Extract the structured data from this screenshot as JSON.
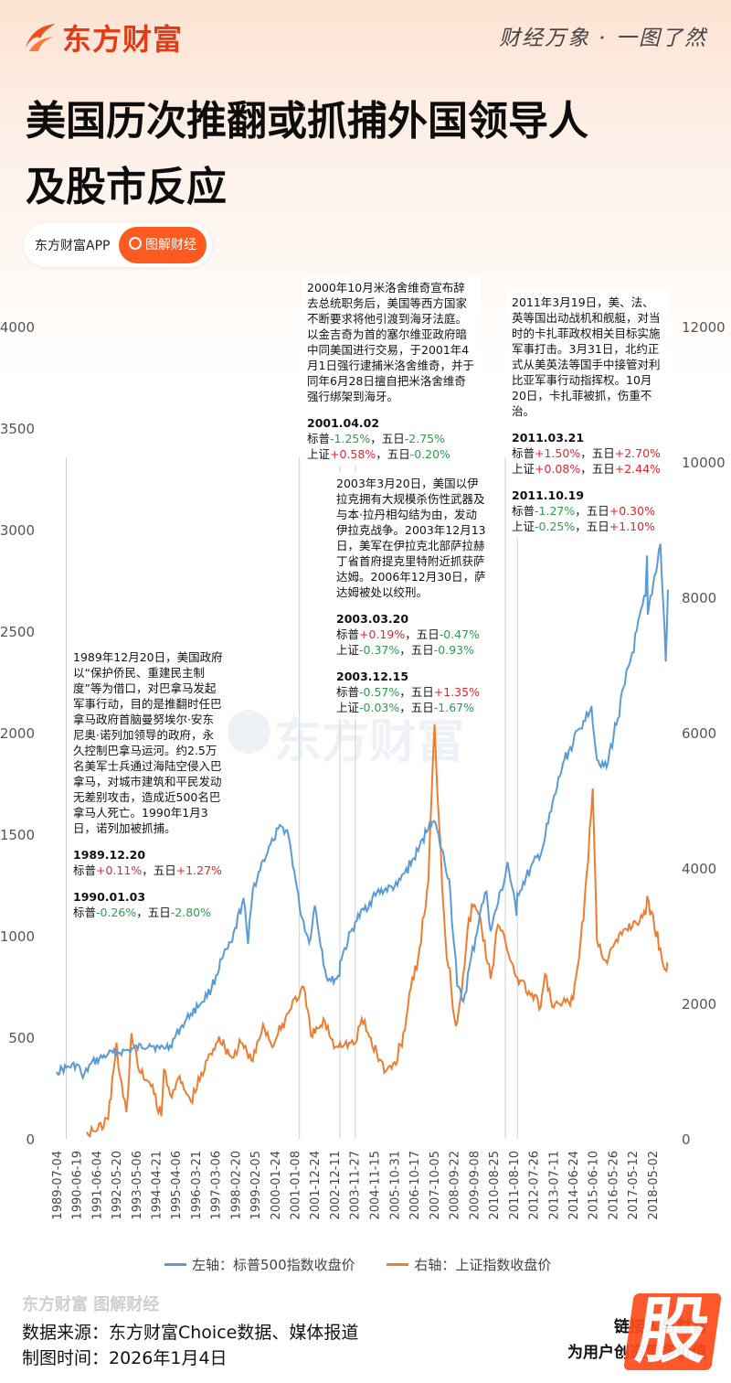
{
  "header": {
    "brand": "东方财富",
    "tagline": "财经万象 · 一图了然",
    "title_line1": "美国历次推翻或抓捕外国领导人",
    "title_line2": "及股市反应",
    "app_label": "东方财富APP",
    "search_button": "图解财经"
  },
  "colors": {
    "sp500": "#5b9bd5",
    "shanghai": "#ed7d31",
    "accent": "#ff5a1f",
    "up": "#e8232b",
    "down": "#25a148"
  },
  "annotations": {
    "panama": {
      "text": "1989年12月20日，美国政府以“保护侨民、重建民主制度”等为借口，对巴拿马发起军事行动，目的是推翻时任巴拿马政府首脑曼努埃尔·安东尼奥·诺列加领导的政府，永久控制巴拿马运河。约2.5万名美军士兵通过海陆空侵入巴拿马，对城市建筑和平民发动无差别攻击，造成近500名巴拿马人死亡。1990年1月3日，诺列加被抓捕。",
      "ev1_date": "1989.12.20",
      "ev1_l1_a": "标普",
      "ev1_l1_b": "+0.11%",
      "ev1_l1_c": "，五日",
      "ev1_l1_d": "+1.27%",
      "ev2_date": "1990.01.03",
      "ev2_l1_a": "标普",
      "ev2_l1_b": "-0.26%",
      "ev2_l1_c": "，五日",
      "ev2_l1_d": "-2.80%"
    },
    "milosevic": {
      "text": "2000年10月米洛舍维奇宣布辞去总统职务后，美国等西方国家不断要求将他引渡到海牙法庭。以金吉奇为首的塞尔维亚政府暗中同美国进行交易，于2001年4月1日强行逮捕米洛舍维奇，并于同年6月28日擅自把米洛舍维奇强行绑架到海牙。",
      "ev1_date": "2001.04.02",
      "ev1_l1_a": "标普",
      "ev1_l1_b": "-1.25%",
      "ev1_l1_c": "，五日",
      "ev1_l1_d": "-2.75%",
      "ev1_l2_a": "上证",
      "ev1_l2_b": "+0.58%",
      "ev1_l2_c": "，五日",
      "ev1_l2_d": "-0.20%"
    },
    "iraq": {
      "text": "2003年3月20日，美国以伊拉克拥有大规模杀伤性武器及与本·拉丹相勾结为由，发动伊拉克战争。2003年12月13日，美军在伊拉克北部萨拉赫丁省首府提克里特附近抓获萨达姆。2006年12月30日，萨达姆被处以绞刑。",
      "ev1_date": "2003.03.20",
      "ev1_l1_a": "标普",
      "ev1_l1_b": "+0.19%",
      "ev1_l1_c": "，五日",
      "ev1_l1_d": "-0.47%",
      "ev1_l2_a": "上证",
      "ev1_l2_b": "-0.37%",
      "ev1_l2_c": "，五日",
      "ev1_l2_d": "-0.93%",
      "ev2_date": "2003.12.15",
      "ev2_l1_a": "标普",
      "ev2_l1_b": "-0.57%",
      "ev2_l1_c": "，五日",
      "ev2_l1_d": "+1.35%",
      "ev2_l2_a": "上证",
      "ev2_l2_b": "-0.03%",
      "ev2_l2_c": "，五日",
      "ev2_l2_d": "-1.67%"
    },
    "libya": {
      "text": "2011年3月19日，美、法、英等国出动战机和舰艇，对当时的卡扎菲政权相关目标实施军事打击。3月31日，北约正式从美英法等国手中接管对利比亚军事行动指挥权。10月20日，卡扎菲被抓，伤重不治。",
      "ev1_date": "2011.03.21",
      "ev1_l1_a": "标普",
      "ev1_l1_b": "+1.50%",
      "ev1_l1_c": "，五日",
      "ev1_l1_d": "+2.70%",
      "ev1_l2_a": "上证",
      "ev1_l2_b": "+0.08%",
      "ev1_l2_c": "，五日",
      "ev1_l2_d": "+2.44%",
      "ev2_date": "2011.10.19",
      "ev2_l1_a": "标普",
      "ev2_l1_b": "-1.27%",
      "ev2_l1_c": "，五日",
      "ev2_l1_d": "+0.30%",
      "ev2_l2_a": "上证",
      "ev2_l2_b": "-0.25%",
      "ev2_l2_c": "，五日",
      "ev2_l2_d": "+1.10%"
    }
  },
  "legend": {
    "sp500": "左轴：标普500指数收盘价",
    "shanghai": "右轴：上证指数收盘价"
  },
  "watermark": "东方财富",
  "footer": {
    "logo": "东方财富 图解财经",
    "source": "数据来源：东方财富Choice数据、媒体报道",
    "made_time": "制图时间：2026年1月4日",
    "slogan1": "链接人与财富",
    "slogan2": "为用户创造更多价值",
    "badge": "股"
  },
  "chart_data": {
    "type": "line",
    "x_range": [
      "1989-07-04",
      "2019-01-31"
    ],
    "left_axis": {
      "ticks": [
        0,
        500,
        1000,
        1500,
        2000,
        2500,
        3000,
        3500,
        4000
      ],
      "ylim": [
        0,
        4000
      ]
    },
    "right_axis": {
      "ticks": [
        0,
        2000,
        4000,
        6000,
        8000,
        10000,
        12000
      ],
      "ylim": [
        0,
        12000
      ]
    },
    "x_ticks": [
      "1989-07-04",
      "1990-06-19",
      "1991-06-04",
      "1992-05-20",
      "1993-05-06",
      "1994-04-21",
      "1995-04-06",
      "1996-03-21",
      "1997-03-06",
      "1998-02-20",
      "1999-02-05",
      "2000-01-24",
      "2001-01-08",
      "2001-12-24",
      "2002-12-11",
      "2003-11-27",
      "2004-11-15",
      "2005-10-31",
      "2006-10-17",
      "2007-10-05",
      "2008-09-22",
      "2009-09-08",
      "2010-08-25",
      "2011-08-10",
      "2012-07-26",
      "2013-07-11",
      "2014-06-24",
      "2015-06-10",
      "2016-05-26",
      "2017-05-12",
      "2018-05-02"
    ],
    "event_dates": [
      "1989-12-20",
      "2001-04-02",
      "2003-03-20",
      "2003-12-15",
      "2011-03-21",
      "2011-10-19"
    ],
    "series": [
      {
        "name": "左轴：标普500指数收盘价",
        "axis": "left",
        "points": [
          [
            "1989-07-04",
            330
          ],
          [
            "1989-12-20",
            350
          ],
          [
            "1990-07-16",
            365
          ],
          [
            "1990-10-11",
            300
          ],
          [
            "1991-03-01",
            370
          ],
          [
            "1991-12-31",
            417
          ],
          [
            "1992-12-31",
            436
          ],
          [
            "1993-12-31",
            466
          ],
          [
            "1994-06-30",
            444
          ],
          [
            "1994-12-31",
            459
          ],
          [
            "1995-06-30",
            545
          ],
          [
            "1995-12-31",
            616
          ],
          [
            "1996-06-30",
            670
          ],
          [
            "1996-12-31",
            740
          ],
          [
            "1997-06-30",
            885
          ],
          [
            "1997-12-31",
            970
          ],
          [
            "1998-07-17",
            1186
          ],
          [
            "1998-10-08",
            960
          ],
          [
            "1998-12-31",
            1229
          ],
          [
            "1999-06-30",
            1372
          ],
          [
            "1999-12-31",
            1469
          ],
          [
            "2000-03-24",
            1527
          ],
          [
            "2000-09-01",
            1520
          ],
          [
            "2000-12-31",
            1320
          ],
          [
            "2001-04-02",
            1146
          ],
          [
            "2001-09-21",
            965
          ],
          [
            "2001-12-31",
            1148
          ],
          [
            "2002-07-23",
            797
          ],
          [
            "2002-10-09",
            777
          ],
          [
            "2003-03-11",
            800
          ],
          [
            "2003-03-20",
            875
          ],
          [
            "2003-12-15",
            1068
          ],
          [
            "2004-12-31",
            1212
          ],
          [
            "2005-12-31",
            1248
          ],
          [
            "2006-12-31",
            1418
          ],
          [
            "2007-07-19",
            1553
          ],
          [
            "2007-10-09",
            1565
          ],
          [
            "2008-06-30",
            1280
          ],
          [
            "2008-11-20",
            752
          ],
          [
            "2009-03-09",
            676
          ],
          [
            "2009-12-31",
            1115
          ],
          [
            "2010-04-23",
            1217
          ],
          [
            "2010-07-02",
            1022
          ],
          [
            "2011-03-21",
            1298
          ],
          [
            "2011-04-29",
            1363
          ],
          [
            "2011-10-03",
            1099
          ],
          [
            "2011-10-19",
            1209
          ],
          [
            "2012-12-31",
            1426
          ],
          [
            "2013-12-31",
            1848
          ],
          [
            "2014-12-31",
            2058
          ],
          [
            "2015-05-21",
            2131
          ],
          [
            "2015-08-25",
            1867
          ],
          [
            "2016-02-11",
            1829
          ],
          [
            "2016-12-31",
            2238
          ],
          [
            "2017-12-31",
            2673
          ],
          [
            "2018-01-26",
            2872
          ],
          [
            "2018-02-08",
            2581
          ],
          [
            "2018-09-20",
            2930
          ],
          [
            "2018-12-24",
            2351
          ],
          [
            "2019-01-31",
            2704
          ]
        ]
      },
      {
        "name": "右轴：上证指数收盘价",
        "axis": "right",
        "points": [
          [
            "1990-12-19",
            100
          ],
          [
            "1991-06-30",
            140
          ],
          [
            "1991-12-31",
            292
          ],
          [
            "1992-05-26",
            1421
          ],
          [
            "1992-06-30",
            1050
          ],
          [
            "1992-11-17",
            393
          ],
          [
            "1993-02-16",
            1558
          ],
          [
            "1993-06-30",
            1000
          ],
          [
            "1993-12-31",
            833
          ],
          [
            "1994-07-29",
            334
          ],
          [
            "1994-09-13",
            1033
          ],
          [
            "1994-12-31",
            648
          ],
          [
            "1995-05-22",
            897
          ],
          [
            "1995-12-31",
            555
          ],
          [
            "1996-12-11",
            1258
          ],
          [
            "1997-05-12",
            1510
          ],
          [
            "1997-12-31",
            1194
          ],
          [
            "1998-06-04",
            1420
          ],
          [
            "1998-12-31",
            1147
          ],
          [
            "1999-06-30",
            1690
          ],
          [
            "1999-12-31",
            1367
          ],
          [
            "2000-12-31",
            2073
          ],
          [
            "2001-04-02",
            2110
          ],
          [
            "2001-06-14",
            2245
          ],
          [
            "2001-10-22",
            1520
          ],
          [
            "2002-06-25",
            1732
          ],
          [
            "2002-12-31",
            1357
          ],
          [
            "2003-03-20",
            1420
          ],
          [
            "2003-12-15",
            1410
          ],
          [
            "2004-04-07",
            1777
          ],
          [
            "2004-12-31",
            1266
          ],
          [
            "2005-06-06",
            998
          ],
          [
            "2005-12-31",
            1161
          ],
          [
            "2006-12-31",
            2675
          ],
          [
            "2007-06-30",
            3820
          ],
          [
            "2007-10-16",
            6124
          ],
          [
            "2008-04-22",
            3000
          ],
          [
            "2008-10-28",
            1664
          ],
          [
            "2009-08-04",
            3478
          ],
          [
            "2009-12-31",
            3277
          ],
          [
            "2010-07-02",
            2363
          ],
          [
            "2010-11-08",
            3159
          ],
          [
            "2011-03-21",
            2915
          ],
          [
            "2011-10-19",
            2382
          ],
          [
            "2012-12-03",
            1949
          ],
          [
            "2013-02-18",
            2433
          ],
          [
            "2013-06-25",
            1950
          ],
          [
            "2014-06-30",
            2048
          ],
          [
            "2014-12-31",
            3234
          ],
          [
            "2015-06-12",
            5178
          ],
          [
            "2015-08-26",
            2927
          ],
          [
            "2016-01-27",
            2638
          ],
          [
            "2016-12-31",
            3104
          ],
          [
            "2017-12-31",
            3307
          ],
          [
            "2018-01-29",
            3587
          ],
          [
            "2018-12-31",
            2494
          ],
          [
            "2019-01-04",
            2464
          ],
          [
            "2019-01-31",
            2585
          ]
        ]
      }
    ]
  }
}
